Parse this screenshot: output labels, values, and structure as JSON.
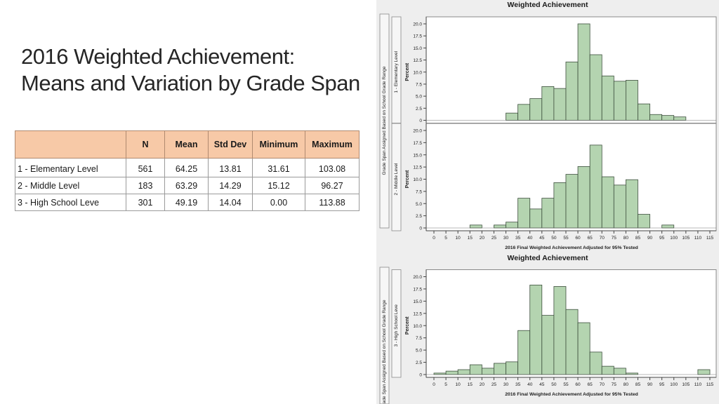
{
  "slide": {
    "title_line1": "2016 Weighted Achievement:",
    "title_line2": "Means and Variation by Grade Span"
  },
  "table": {
    "headers": [
      "",
      "N",
      "Mean",
      "Std Dev",
      "Minimum",
      "Maximum"
    ],
    "rows": [
      {
        "label": "1 - Elementary Level",
        "n": "561",
        "mean": "64.25",
        "std": "13.81",
        "min": "31.61",
        "max": "103.08"
      },
      {
        "label": "2 - Middle Level",
        "n": "183",
        "mean": "63.29",
        "std": "14.29",
        "min": "15.12",
        "max": "96.27"
      },
      {
        "label": "3 - High School Leve",
        "n": "301",
        "mean": "49.19",
        "std": "14.04",
        "min": "0.00",
        "max": "113.88"
      }
    ]
  },
  "colors": {
    "bar_fill": "#b4d4b0",
    "bar_stroke": "#3d4f3d",
    "panel_bg": "#eeeeee",
    "plot_bg": "#ffffff",
    "table_header_bg": "#f7c9a7"
  },
  "chart_data": [
    {
      "type": "bar",
      "title": "Weighted Achievement",
      "outer_label": "Grade Span Assigned Based on School Grade Range",
      "panel_label_upper": "1 - Elementary Level",
      "panel_label_lower": "2 - Middle Level",
      "xlabel": "2016 Final Weighted Achievement Adjusted for 95% Tested",
      "ylabel": "Percent",
      "x_ticks": [
        "0",
        "5",
        "10",
        "15",
        "20",
        "25",
        "30",
        "35",
        "40",
        "45",
        "50",
        "55",
        "60",
        "65",
        "70",
        "75",
        "80",
        "85",
        "90",
        "95",
        "100",
        "105",
        "110",
        "115"
      ],
      "y_ticks": [
        "0",
        "2.5",
        "5.0",
        "7.5",
        "10.0",
        "12.5",
        "15.0",
        "17.5",
        "20.0"
      ],
      "ylim": [
        0,
        20
      ],
      "bin_width": 5,
      "series": [
        {
          "name": "1 - Elementary Level",
          "x": [
            30,
            35,
            40,
            45,
            50,
            55,
            60,
            65,
            70,
            75,
            80,
            85,
            90,
            95,
            100
          ],
          "values": [
            1.5,
            3.3,
            4.5,
            7.0,
            6.6,
            12.1,
            20.0,
            13.6,
            9.2,
            8.1,
            8.3,
            3.4,
            1.2,
            1.0,
            0.7
          ]
        },
        {
          "name": "2 - Middle Level",
          "x": [
            15,
            25,
            30,
            35,
            40,
            45,
            50,
            55,
            60,
            65,
            70,
            75,
            80,
            85,
            95
          ],
          "values": [
            0.6,
            0.6,
            1.2,
            6.1,
            3.9,
            6.1,
            9.3,
            11.0,
            12.6,
            17.0,
            10.5,
            8.8,
            9.9,
            2.8,
            0.6
          ]
        }
      ]
    },
    {
      "type": "bar",
      "title": "Weighted Achievement",
      "outer_label": "Grade Span Assigned Based on School Grade Range",
      "panel_label": "3 - High School Leve",
      "xlabel": "2016 Final Weighted Achievement Adjusted for 95% Tested",
      "ylabel": "Percent",
      "x_ticks": [
        "0",
        "5",
        "10",
        "15",
        "20",
        "25",
        "30",
        "35",
        "40",
        "45",
        "50",
        "55",
        "60",
        "65",
        "70",
        "75",
        "80",
        "85",
        "90",
        "95",
        "100",
        "105",
        "110",
        "115"
      ],
      "y_ticks": [
        "0",
        "2.5",
        "5.0",
        "7.5",
        "10.0",
        "12.5",
        "15.0",
        "17.5",
        "20.0"
      ],
      "ylim": [
        0,
        20
      ],
      "bin_width": 5,
      "series": [
        {
          "name": "3 - High School Leve",
          "x": [
            0,
            5,
            10,
            15,
            20,
            25,
            30,
            35,
            40,
            45,
            50,
            55,
            60,
            65,
            70,
            75,
            80,
            110
          ],
          "values": [
            0.3,
            0.7,
            1.0,
            2.0,
            1.3,
            2.3,
            2.6,
            9.0,
            18.3,
            12.1,
            18.0,
            13.3,
            10.6,
            4.6,
            1.7,
            1.3,
            0.3,
            1.0
          ]
        }
      ]
    }
  ]
}
